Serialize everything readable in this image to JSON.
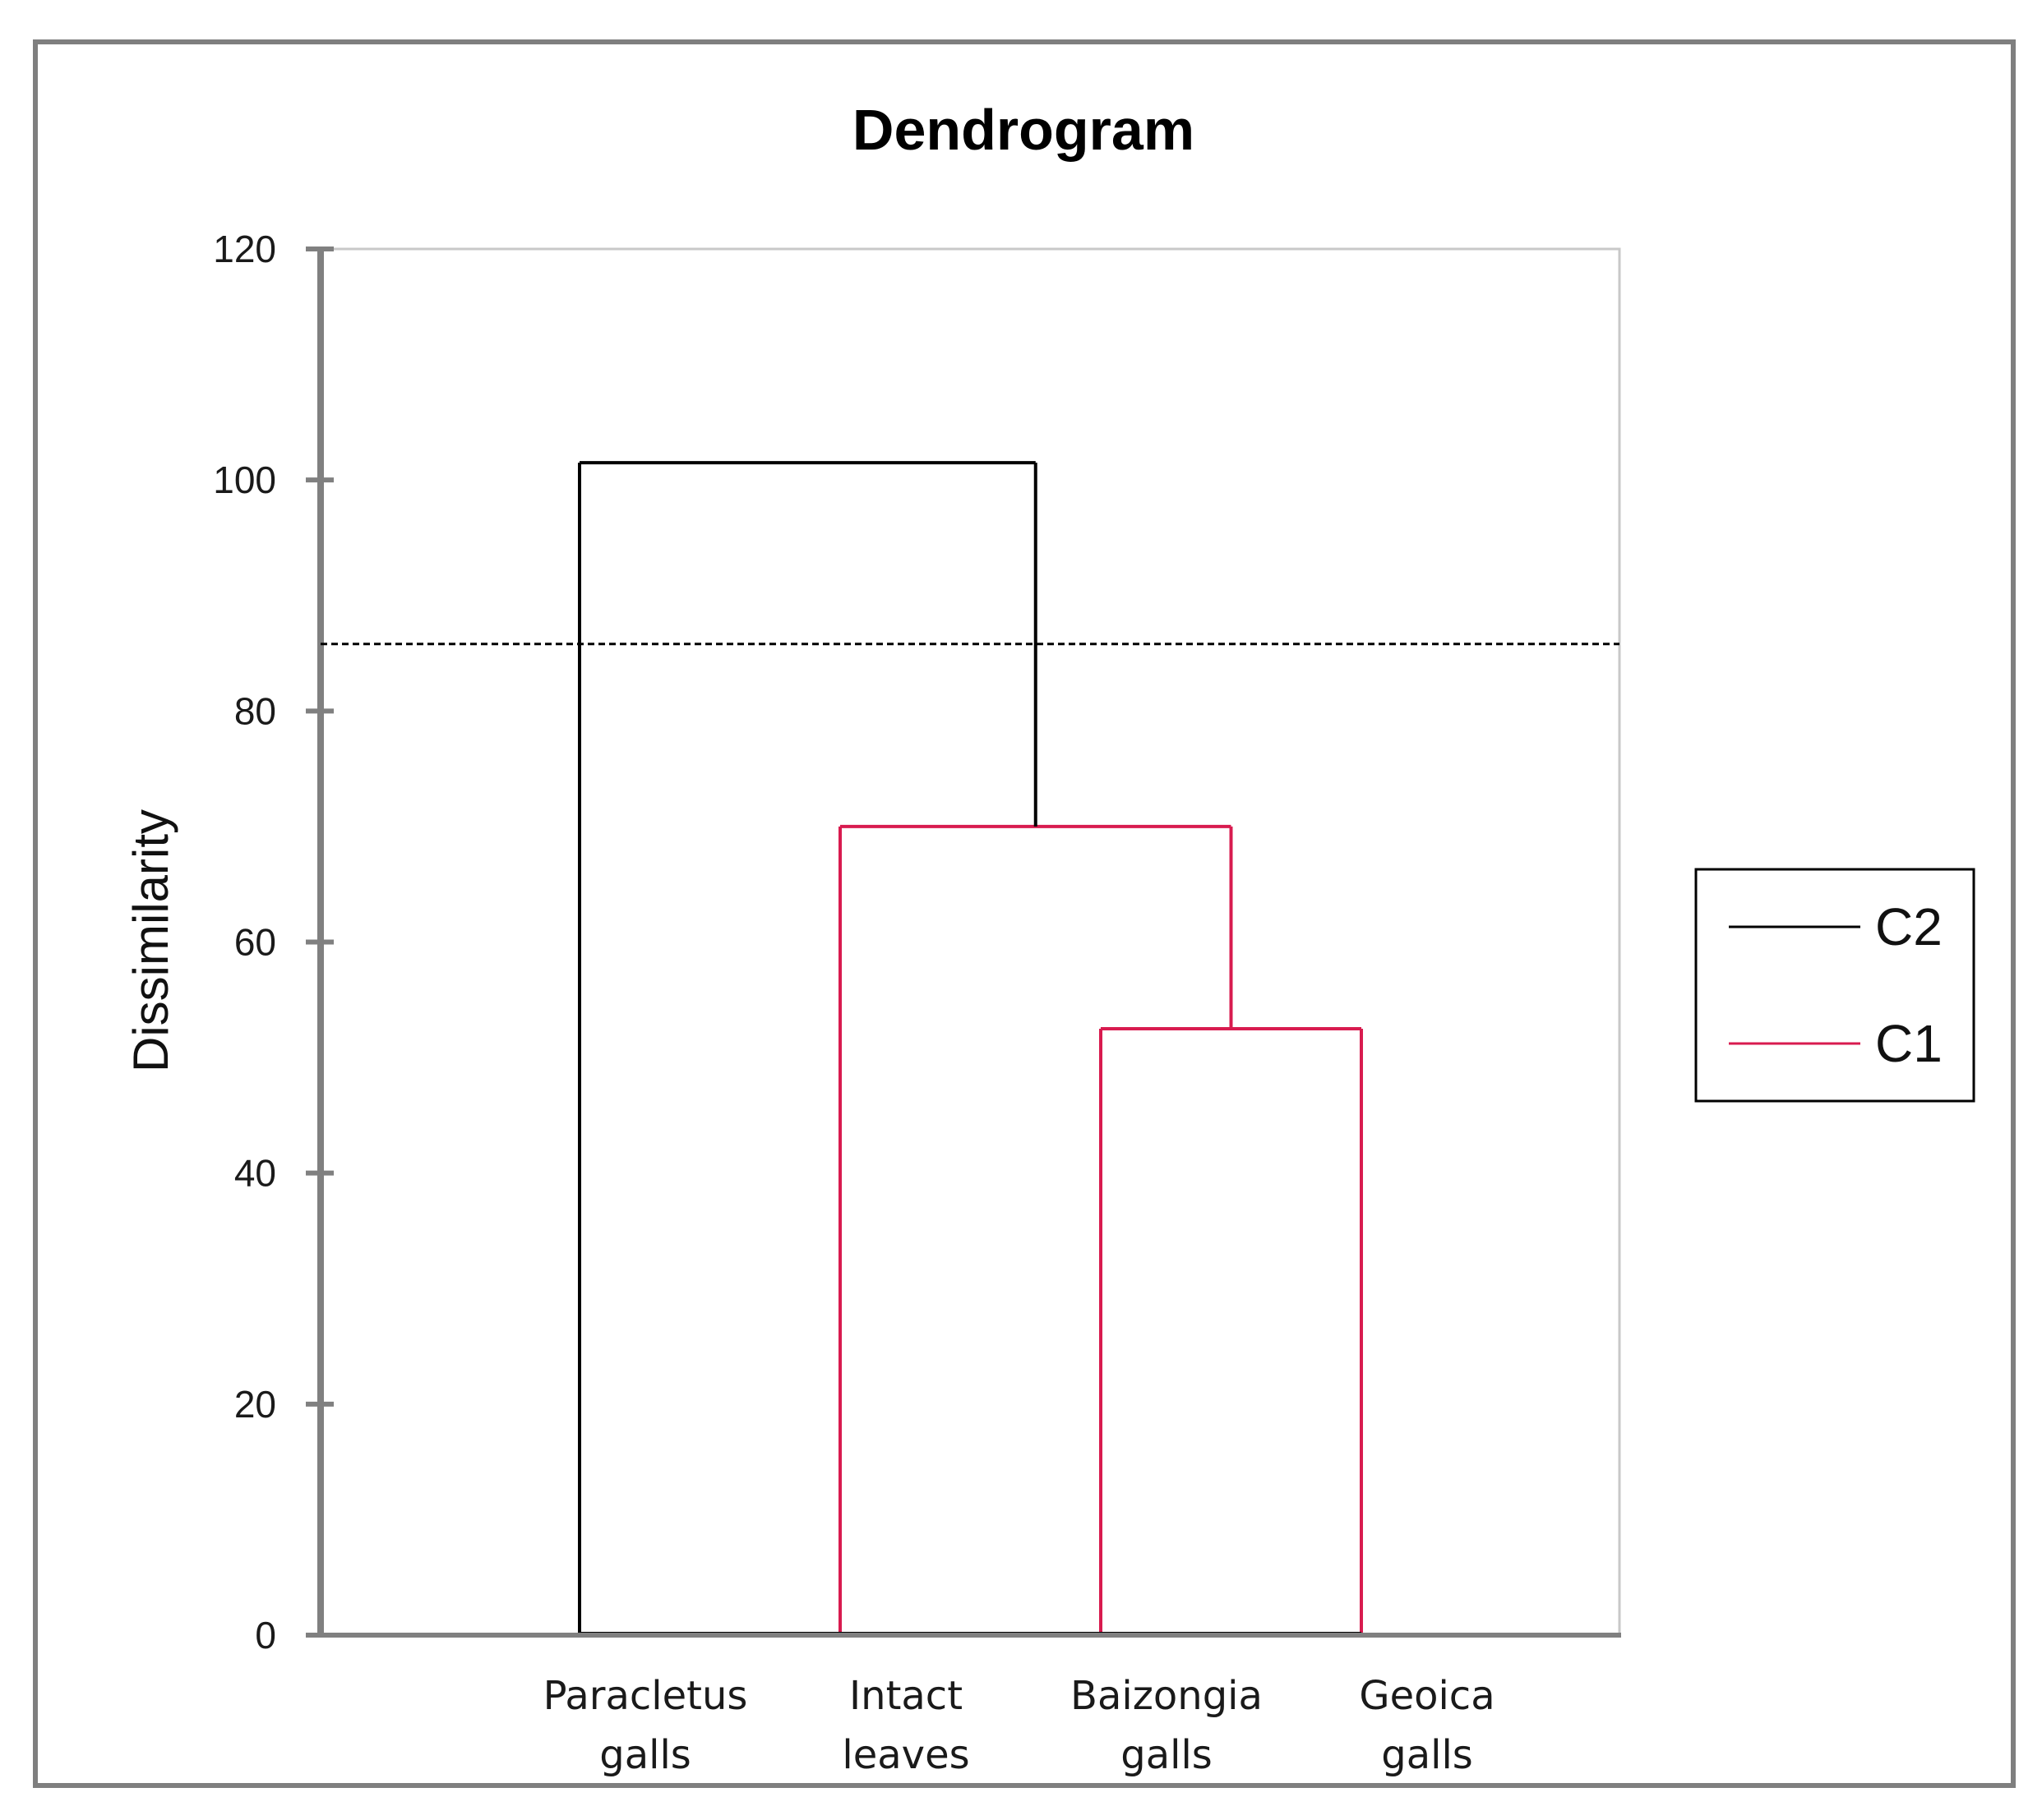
{
  "chart_data": {
    "type": "dendrogram",
    "title": "Dendrogram",
    "ylabel": "Dissimilarity",
    "xlabel": "",
    "ylim": [
      0,
      120
    ],
    "yticks": [
      "0",
      "20",
      "40",
      "60",
      "80",
      "100",
      "120"
    ],
    "ytick_values": [
      0,
      20,
      40,
      60,
      80,
      100,
      120
    ],
    "leaves": [
      {
        "line1": "Paracletus",
        "line2": "galls"
      },
      {
        "line1": "Intact",
        "line2": "leaves"
      },
      {
        "line1": "Baizongia",
        "line2": "galls"
      },
      {
        "line1": "Geoica",
        "line2": "galls"
      }
    ],
    "merges": [
      {
        "left": 2,
        "right": 3,
        "height": 52.5,
        "cluster": "C1"
      },
      {
        "left": 1,
        "right": "m0",
        "height": 70,
        "cluster": "C1"
      },
      {
        "left": 0,
        "right": "m1",
        "height": 101.5,
        "cluster": "C2"
      }
    ],
    "cut_height": 85.8,
    "legend": {
      "position": "right",
      "entries": [
        {
          "label": "C2",
          "color": "#000000"
        },
        {
          "label": "C1",
          "color": "#d81b4f"
        }
      ]
    },
    "colors": {
      "C2": "#000000",
      "C1": "#d81b4f",
      "axis": "#808080",
      "plot_border": "#c8c8c8"
    }
  }
}
